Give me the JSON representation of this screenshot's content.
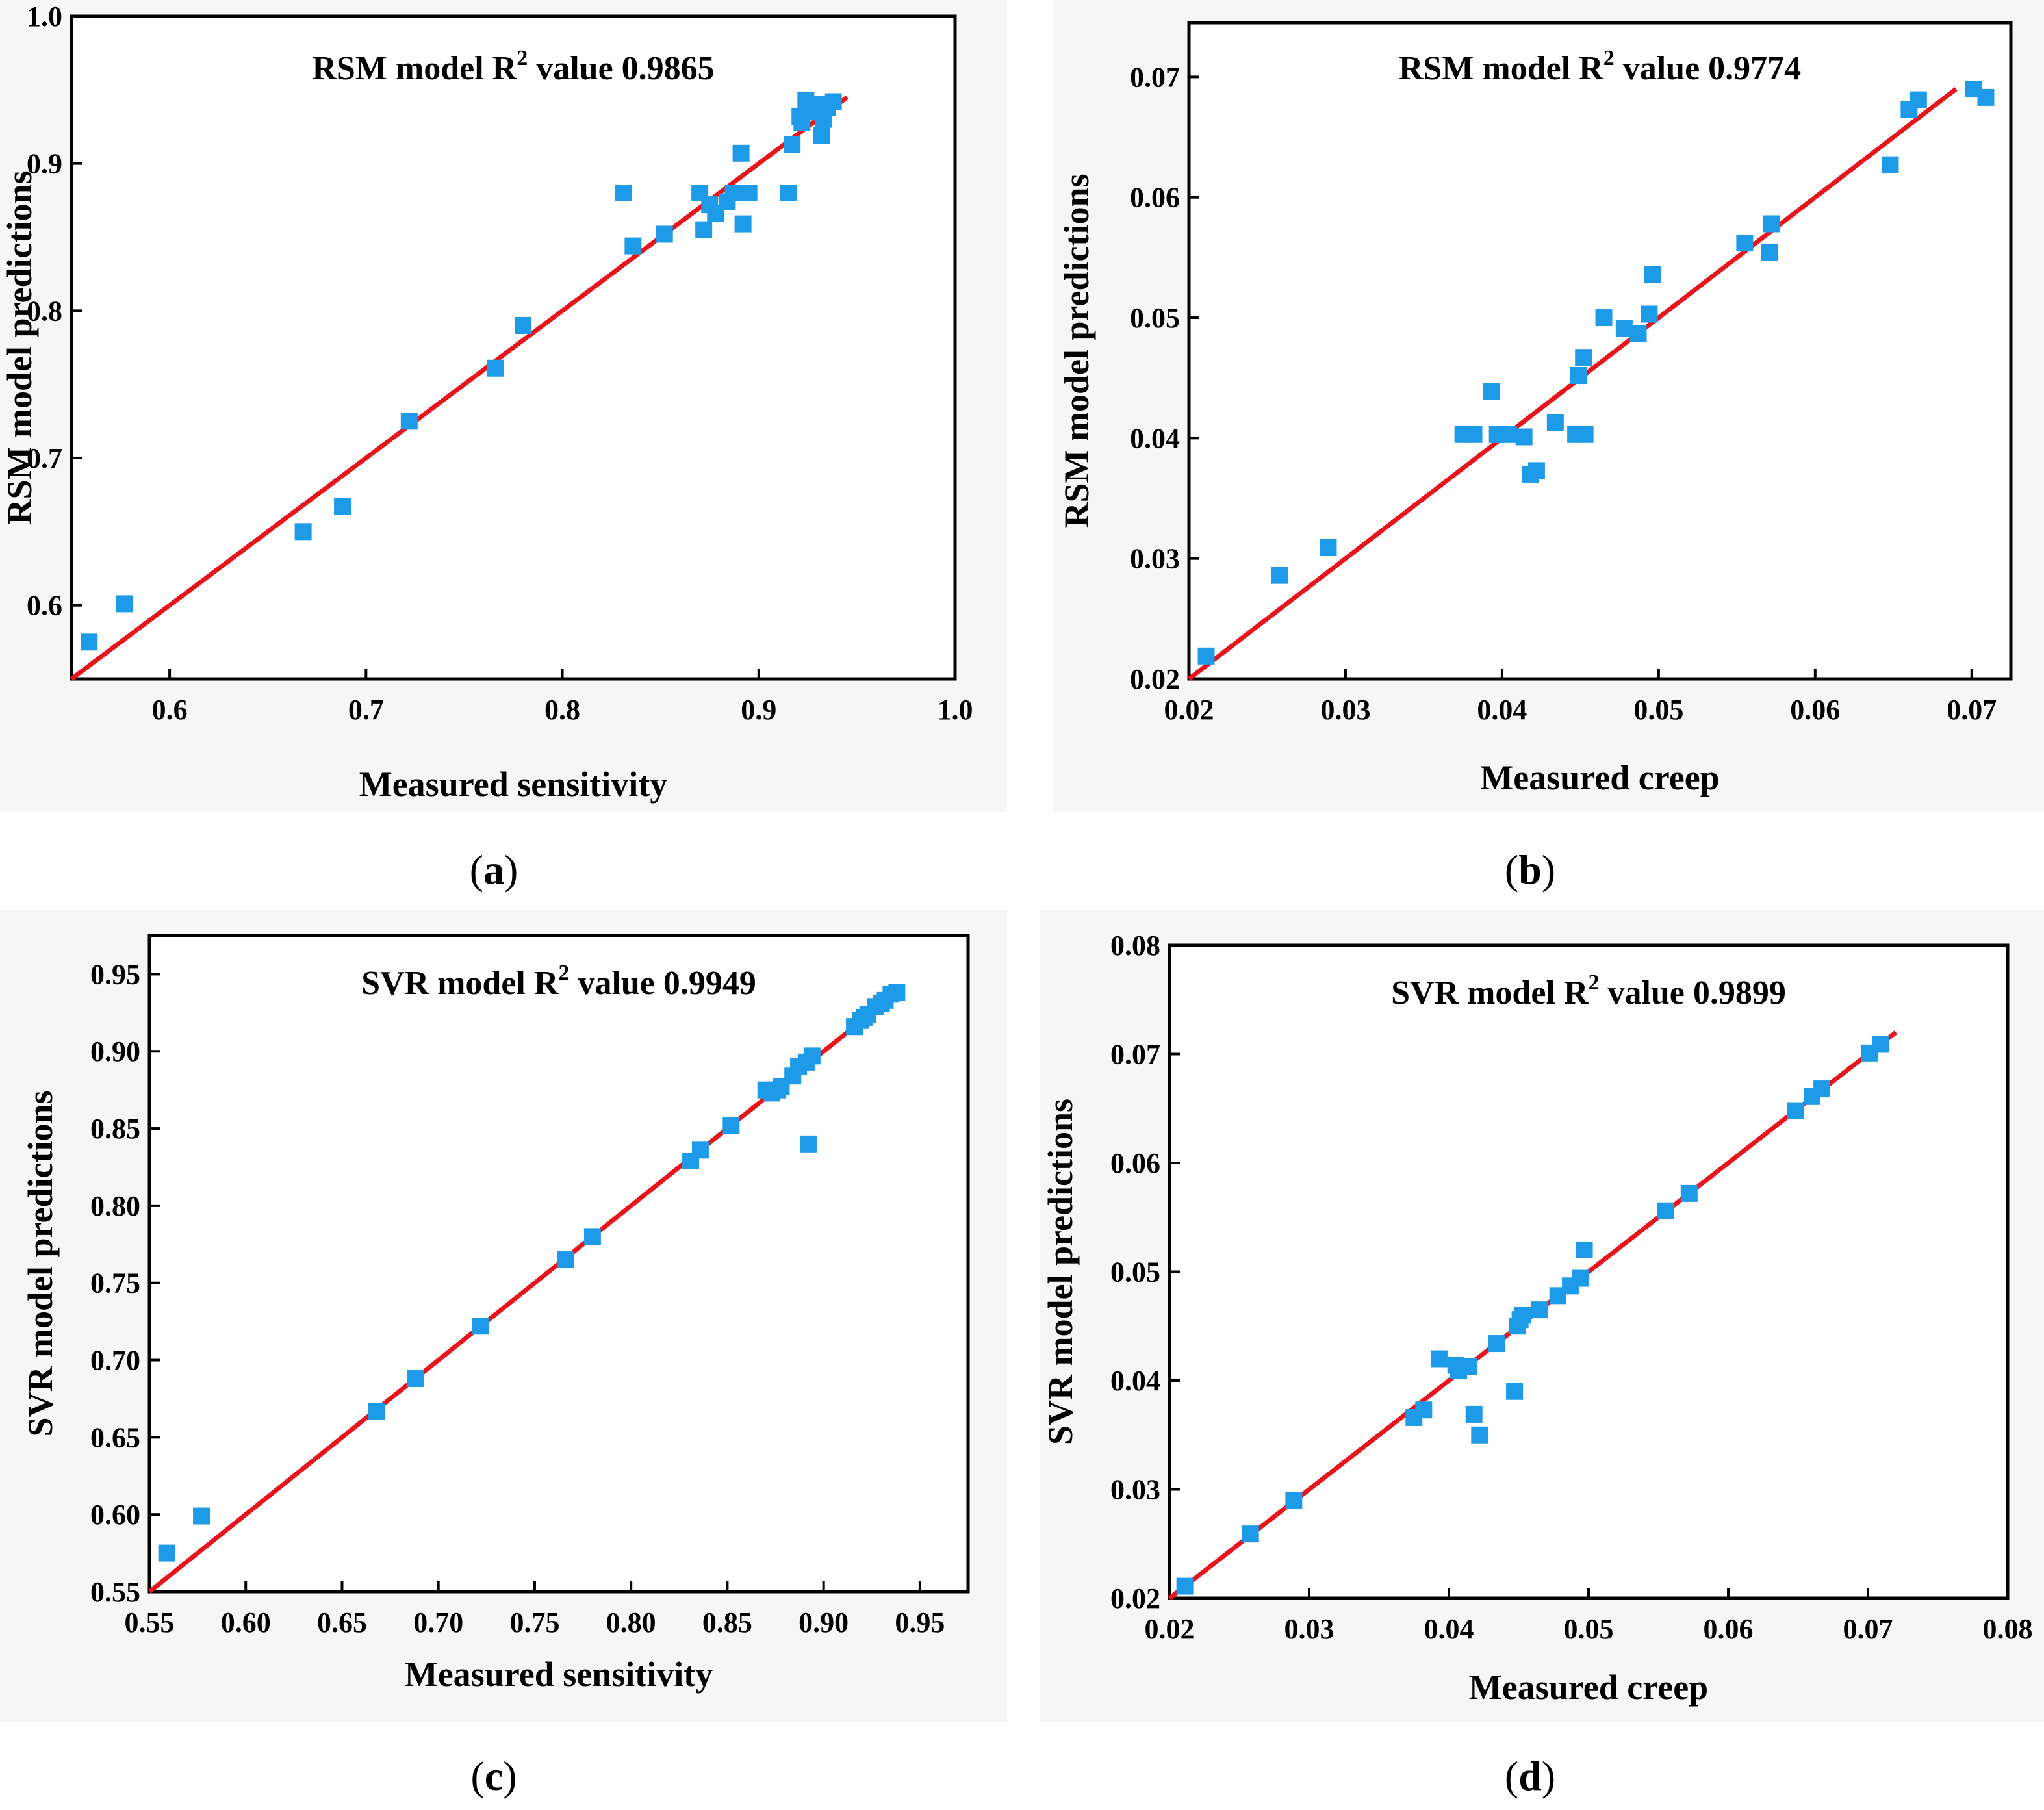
{
  "chart_data": [
    {
      "type": "scatter",
      "panel": "a",
      "title_prefix": "RSM model R",
      "title_sup": "2",
      "title_suffix": " value 0.9865",
      "xlabel": "Measured sensitivity",
      "ylabel": "RSM model predictions",
      "xlim": [
        0.55,
        1.0
      ],
      "ylim": [
        0.55,
        1.0
      ],
      "xticks": [
        0.6,
        0.7,
        0.8,
        0.9,
        1.0
      ],
      "xtick_labels": [
        "0.6",
        "0.7",
        "0.8",
        "0.9",
        "1.0"
      ],
      "yticks": [
        0.6,
        0.7,
        0.8,
        0.9,
        1.0
      ],
      "ytick_labels": [
        "0.6",
        "0.7",
        "0.8",
        "0.9",
        "1.0"
      ],
      "fit_line": [
        [
          0.55,
          0.55
        ],
        [
          0.945,
          0.945
        ]
      ],
      "marker_color": "#1e9be8",
      "line_color": "#e8141b",
      "points": [
        [
          0.559,
          0.575
        ],
        [
          0.577,
          0.601
        ],
        [
          0.668,
          0.65
        ],
        [
          0.688,
          0.667
        ],
        [
          0.722,
          0.725
        ],
        [
          0.766,
          0.761
        ],
        [
          0.78,
          0.79
        ],
        [
          0.831,
          0.88
        ],
        [
          0.836,
          0.844
        ],
        [
          0.852,
          0.852
        ],
        [
          0.87,
          0.88
        ],
        [
          0.872,
          0.855
        ],
        [
          0.875,
          0.872
        ],
        [
          0.878,
          0.866
        ],
        [
          0.884,
          0.874
        ],
        [
          0.887,
          0.88
        ],
        [
          0.891,
          0.907
        ],
        [
          0.892,
          0.859
        ],
        [
          0.895,
          0.88
        ],
        [
          0.915,
          0.88
        ],
        [
          0.917,
          0.913
        ],
        [
          0.921,
          0.932
        ],
        [
          0.922,
          0.928
        ],
        [
          0.924,
          0.943
        ],
        [
          0.927,
          0.935
        ],
        [
          0.93,
          0.94
        ],
        [
          0.932,
          0.919
        ],
        [
          0.933,
          0.93
        ],
        [
          0.935,
          0.938
        ],
        [
          0.938,
          0.942
        ]
      ],
      "panel_label": "a"
    },
    {
      "type": "scatter",
      "panel": "b",
      "title_prefix": "RSM model R",
      "title_sup": "2",
      "title_suffix": " value 0.9774",
      "xlabel": "Measured creep",
      "ylabel": "RSM model predictions",
      "xlim": [
        0.02,
        0.0725
      ],
      "ylim": [
        0.02,
        0.0745
      ],
      "xticks": [
        0.02,
        0.03,
        0.04,
        0.05,
        0.06,
        0.07
      ],
      "xtick_labels": [
        "0.02",
        "0.03",
        "0.04",
        "0.05",
        "0.06",
        "0.07"
      ],
      "yticks": [
        0.02,
        0.03,
        0.04,
        0.05,
        0.06,
        0.07
      ],
      "ytick_labels": [
        "0.02",
        "0.03",
        "0.04",
        "0.05",
        "0.06",
        "0.07"
      ],
      "fit_line": [
        [
          0.02,
          0.02
        ],
        [
          0.069,
          0.069
        ]
      ],
      "marker_color": "#1e9be8",
      "line_color": "#e8141b",
      "points": [
        [
          0.0211,
          0.0219
        ],
        [
          0.0258,
          0.0286
        ],
        [
          0.0289,
          0.0309
        ],
        [
          0.0375,
          0.0403
        ],
        [
          0.0382,
          0.0403
        ],
        [
          0.0393,
          0.0439
        ],
        [
          0.0397,
          0.0403
        ],
        [
          0.0404,
          0.0403
        ],
        [
          0.0414,
          0.0401
        ],
        [
          0.0418,
          0.037
        ],
        [
          0.0422,
          0.0373
        ],
        [
          0.0434,
          0.0413
        ],
        [
          0.0447,
          0.0403
        ],
        [
          0.0449,
          0.0452
        ],
        [
          0.0452,
          0.0467
        ],
        [
          0.0453,
          0.0403
        ],
        [
          0.0465,
          0.05
        ],
        [
          0.0478,
          0.0491
        ],
        [
          0.0487,
          0.0487
        ],
        [
          0.0494,
          0.0503
        ],
        [
          0.0496,
          0.0536
        ],
        [
          0.0555,
          0.0562
        ],
        [
          0.0571,
          0.0554
        ],
        [
          0.0572,
          0.0578
        ],
        [
          0.0648,
          0.0627
        ],
        [
          0.066,
          0.0673
        ],
        [
          0.0666,
          0.0681
        ],
        [
          0.0701,
          0.069
        ],
        [
          0.0709,
          0.0683
        ]
      ],
      "panel_label": "b"
    },
    {
      "type": "scatter",
      "panel": "c",
      "title_prefix": "SVR model R",
      "title_sup": "2",
      "title_suffix": " value 0.9949",
      "xlabel": "Measured sensitivity",
      "ylabel": "SVR model predictions",
      "xlim": [
        0.55,
        0.975
      ],
      "ylim": [
        0.55,
        0.975
      ],
      "xticks": [
        0.55,
        0.6,
        0.65,
        0.7,
        0.75,
        0.8,
        0.85,
        0.9,
        0.95
      ],
      "xtick_labels": [
        "0.55",
        "0.60",
        "0.65",
        "0.70",
        "0.75",
        "0.80",
        "0.85",
        "0.90",
        "0.95"
      ],
      "yticks": [
        0.55,
        0.6,
        0.65,
        0.7,
        0.75,
        0.8,
        0.85,
        0.9,
        0.95
      ],
      "ytick_labels": [
        "0.55",
        "0.60",
        "0.65",
        "0.70",
        "0.75",
        "0.80",
        "0.85",
        "0.90",
        "0.95"
      ],
      "fit_line": [
        [
          0.55,
          0.55
        ],
        [
          0.94,
          0.94
        ]
      ],
      "marker_color": "#1e9be8",
      "line_color": "#e8141b",
      "points": [
        [
          0.559,
          0.575
        ],
        [
          0.577,
          0.599
        ],
        [
          0.668,
          0.667
        ],
        [
          0.688,
          0.688
        ],
        [
          0.722,
          0.722
        ],
        [
          0.766,
          0.765
        ],
        [
          0.78,
          0.78
        ],
        [
          0.831,
          0.829
        ],
        [
          0.836,
          0.836
        ],
        [
          0.852,
          0.852
        ],
        [
          0.87,
          0.875
        ],
        [
          0.873,
          0.873
        ],
        [
          0.876,
          0.875
        ],
        [
          0.878,
          0.877
        ],
        [
          0.884,
          0.884
        ],
        [
          0.887,
          0.89
        ],
        [
          0.891,
          0.893
        ],
        [
          0.892,
          0.84
        ],
        [
          0.894,
          0.897
        ],
        [
          0.916,
          0.916
        ],
        [
          0.919,
          0.92
        ],
        [
          0.921,
          0.922
        ],
        [
          0.923,
          0.924
        ],
        [
          0.927,
          0.929
        ],
        [
          0.93,
          0.931
        ],
        [
          0.932,
          0.933
        ],
        [
          0.935,
          0.937
        ],
        [
          0.938,
          0.938
        ]
      ],
      "panel_label": "c"
    },
    {
      "type": "scatter",
      "panel": "d",
      "title_prefix": "SVR model R",
      "title_sup": "2",
      "title_suffix": " value 0.9899",
      "xlabel": "Measured creep",
      "ylabel": "SVR model predictions",
      "xlim": [
        0.02,
        0.08
      ],
      "ylim": [
        0.02,
        0.08
      ],
      "xticks": [
        0.02,
        0.03,
        0.04,
        0.05,
        0.06,
        0.07,
        0.08
      ],
      "xtick_labels": [
        "0.02",
        "0.03",
        "0.04",
        "0.05",
        "0.06",
        "0.07",
        "0.08"
      ],
      "yticks": [
        0.02,
        0.03,
        0.04,
        0.05,
        0.06,
        0.07,
        0.08
      ],
      "ytick_labels": [
        "0.02",
        "0.03",
        "0.04",
        "0.05",
        "0.06",
        "0.07",
        "0.08"
      ],
      "fit_line": [
        [
          0.02,
          0.02
        ],
        [
          0.072,
          0.072
        ]
      ],
      "marker_color": "#1e9be8",
      "line_color": "#e8141b",
      "points": [
        [
          0.0211,
          0.0211
        ],
        [
          0.0258,
          0.0259
        ],
        [
          0.0289,
          0.029
        ],
        [
          0.0375,
          0.0366
        ],
        [
          0.0382,
          0.0373
        ],
        [
          0.0393,
          0.042
        ],
        [
          0.0405,
          0.0414
        ],
        [
          0.0407,
          0.0409
        ],
        [
          0.0414,
          0.0413
        ],
        [
          0.0418,
          0.0369
        ],
        [
          0.0422,
          0.035
        ],
        [
          0.0434,
          0.0434
        ],
        [
          0.0447,
          0.039
        ],
        [
          0.0449,
          0.045
        ],
        [
          0.0451,
          0.0456
        ],
        [
          0.0453,
          0.046
        ],
        [
          0.0465,
          0.0465
        ],
        [
          0.0478,
          0.0478
        ],
        [
          0.0487,
          0.0487
        ],
        [
          0.0494,
          0.0494
        ],
        [
          0.0497,
          0.052
        ],
        [
          0.0555,
          0.0556
        ],
        [
          0.0572,
          0.0572
        ],
        [
          0.0648,
          0.0648
        ],
        [
          0.066,
          0.0661
        ],
        [
          0.0667,
          0.0668
        ],
        [
          0.0701,
          0.0701
        ],
        [
          0.0709,
          0.0709
        ]
      ],
      "panel_label": "d"
    }
  ]
}
